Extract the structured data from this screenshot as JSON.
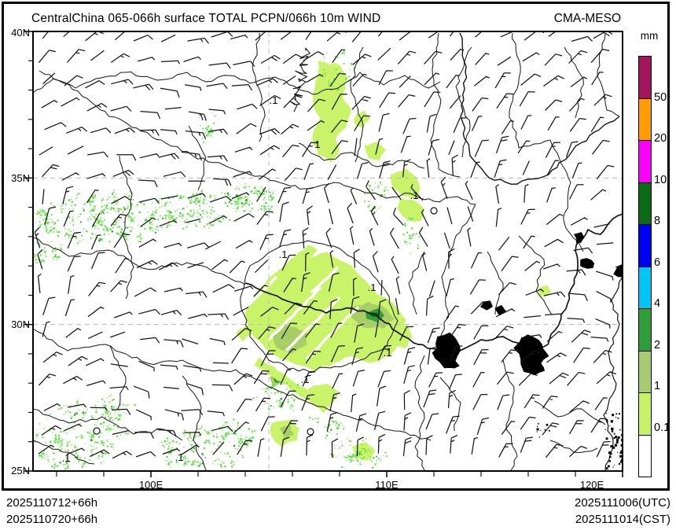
{
  "header": {
    "title": "CentralChina 065-066h surface TOTAL PCPN/066h 10m WIND",
    "model": "CMA-MESO"
  },
  "colorbar": {
    "unit": "mm",
    "tick_labels": [
      "50",
      "20",
      "10",
      "8",
      "6",
      "4",
      "2",
      "1",
      "0.1"
    ],
    "segment_colors_top_to_bottom": [
      "#A2155C",
      "#FF9C00",
      "#FB00FB",
      "#0A6B14",
      "#0000F5",
      "#00C6F5",
      "#2F9E38",
      "#A6CB70",
      "#C6F464",
      "#FFFFFF"
    ]
  },
  "axes": {
    "lat_labels": [
      "40N",
      "35N",
      "30N",
      "25N"
    ],
    "lon_labels": [
      "100E",
      "110E",
      "120E"
    ]
  },
  "map": {
    "contour_labels": [
      ".1",
      "1"
    ],
    "precip_colors": {
      "light": "#C9F46A",
      "medium": "#A9CE66",
      "dark": "#2F9E38",
      "deep": "#0A6B14",
      "speckle": "#60E544"
    },
    "line_color": "#141414",
    "grid_color": "#b8b8b8"
  },
  "footer": {
    "left_line1": "2025110712+66h",
    "left_line2": "2025110720+66h",
    "right_line1": "2025111006(UTC)",
    "right_line2": "2025111014(CST)"
  }
}
